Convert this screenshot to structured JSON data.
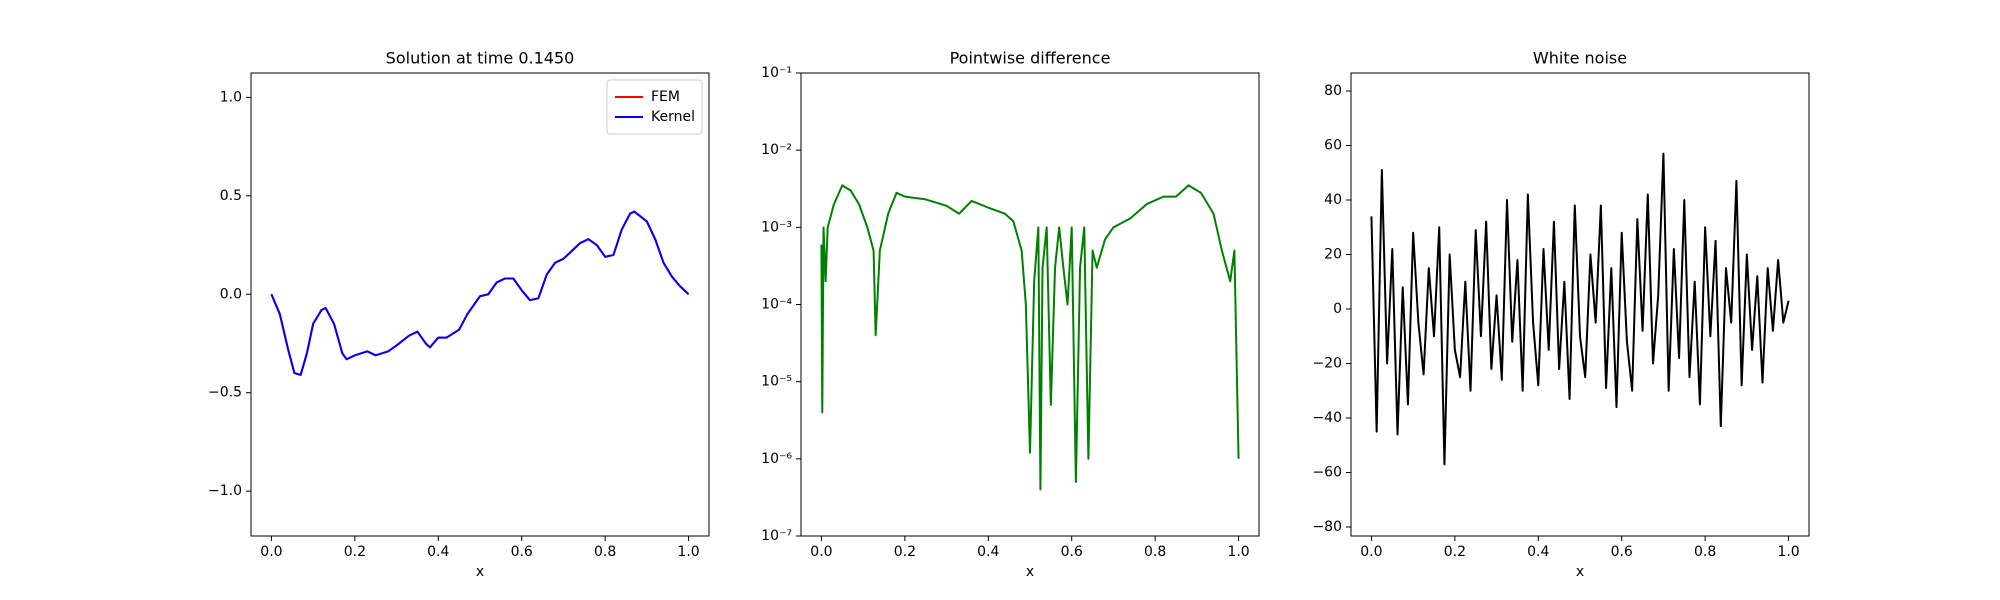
{
  "chart_data": [
    {
      "type": "line",
      "title": "Solution at time 0.1450",
      "xlabel": "x",
      "x": [
        0,
        0.02,
        0.04,
        0.055,
        0.07,
        0.085,
        0.1,
        0.12,
        0.13,
        0.15,
        0.17,
        0.18,
        0.2,
        0.23,
        0.25,
        0.28,
        0.3,
        0.33,
        0.35,
        0.37,
        0.38,
        0.4,
        0.42,
        0.45,
        0.47,
        0.5,
        0.52,
        0.54,
        0.56,
        0.58,
        0.6,
        0.62,
        0.64,
        0.66,
        0.68,
        0.7,
        0.72,
        0.74,
        0.76,
        0.78,
        0.8,
        0.82,
        0.84,
        0.86,
        0.87,
        0.9,
        0.92,
        0.94,
        0.96,
        0.98,
        1.0
      ],
      "series": [
        {
          "name": "FEM",
          "color": "#ff0000",
          "values": [
            0,
            -0.1,
            -0.28,
            -0.4,
            -0.41,
            -0.3,
            -0.15,
            -0.08,
            -0.07,
            -0.15,
            -0.3,
            -0.33,
            -0.31,
            -0.29,
            -0.31,
            -0.29,
            -0.26,
            -0.21,
            -0.19,
            -0.25,
            -0.27,
            -0.22,
            -0.22,
            -0.18,
            -0.1,
            -0.01,
            0.0,
            0.06,
            0.08,
            0.08,
            0.02,
            -0.03,
            -0.02,
            0.1,
            0.16,
            0.18,
            0.22,
            0.26,
            0.28,
            0.25,
            0.19,
            0.2,
            0.33,
            0.41,
            0.42,
            0.37,
            0.28,
            0.16,
            0.09,
            0.04,
            0.0
          ]
        },
        {
          "name": "Kernel",
          "color": "#0000ff",
          "values": [
            0,
            -0.1,
            -0.28,
            -0.4,
            -0.41,
            -0.3,
            -0.15,
            -0.08,
            -0.07,
            -0.15,
            -0.3,
            -0.33,
            -0.31,
            -0.29,
            -0.31,
            -0.29,
            -0.26,
            -0.21,
            -0.19,
            -0.25,
            -0.27,
            -0.22,
            -0.22,
            -0.18,
            -0.1,
            -0.01,
            0.0,
            0.06,
            0.08,
            0.08,
            0.02,
            -0.03,
            -0.02,
            0.1,
            0.16,
            0.18,
            0.22,
            0.26,
            0.28,
            0.25,
            0.19,
            0.2,
            0.33,
            0.41,
            0.42,
            0.37,
            0.28,
            0.16,
            0.09,
            0.04,
            0.0
          ]
        }
      ],
      "xlim": [
        -0.049,
        1.049
      ],
      "ylim": [
        -1.228,
        1.124
      ],
      "xticks": [
        {
          "value": 0,
          "label": "0.0"
        },
        0.2,
        0.4,
        0.6,
        0.8,
        {
          "value": 1,
          "label": "1.0"
        }
      ],
      "yticks": [
        {
          "value": -1,
          "label": "−1.0"
        },
        {
          "value": -0.5,
          "label": "−0.5"
        },
        {
          "value": 0,
          "label": "0.0"
        },
        0.5,
        {
          "value": 1,
          "label": "1.0"
        }
      ],
      "legend": "upper right"
    },
    {
      "type": "line",
      "title": "Pointwise difference",
      "xlabel": "x",
      "yscale": "log",
      "x": [
        0,
        0.002,
        0.005,
        0.01,
        0.015,
        0.03,
        0.05,
        0.07,
        0.09,
        0.11,
        0.125,
        0.13,
        0.14,
        0.16,
        0.18,
        0.2,
        0.25,
        0.3,
        0.33,
        0.36,
        0.4,
        0.44,
        0.46,
        0.48,
        0.49,
        0.5,
        0.51,
        0.52,
        0.525,
        0.53,
        0.54,
        0.55,
        0.56,
        0.57,
        0.58,
        0.59,
        0.6,
        0.61,
        0.62,
        0.63,
        0.64,
        0.65,
        0.66,
        0.68,
        0.7,
        0.74,
        0.78,
        0.82,
        0.85,
        0.88,
        0.91,
        0.94,
        0.96,
        0.98,
        0.99,
        1.0
      ],
      "series": [
        {
          "color": "#008000",
          "values": [
            0.0006,
            4e-06,
            0.001,
            0.0002,
            0.001,
            0.002,
            0.0035,
            0.003,
            0.002,
            0.001,
            0.0005,
            4e-05,
            0.0005,
            0.0015,
            0.0028,
            0.0025,
            0.0023,
            0.0019,
            0.0015,
            0.0022,
            0.0018,
            0.0015,
            0.0012,
            0.0005,
            0.0001,
            1.2e-06,
            0.0002,
            0.001,
            4e-07,
            0.0003,
            0.001,
            5e-06,
            0.0003,
            0.001,
            0.0003,
            0.0001,
            0.001,
            5e-07,
            0.0003,
            0.001,
            1e-06,
            0.0005,
            0.0003,
            0.0007,
            0.001,
            0.0013,
            0.002,
            0.0025,
            0.0025,
            0.0035,
            0.0028,
            0.0015,
            0.0005,
            0.0002,
            0.0005,
            1e-06
          ]
        }
      ],
      "xlim": [
        -0.049,
        1.049
      ],
      "ylim": [
        1e-07,
        0.1
      ],
      "xticks": [
        {
          "value": 0,
          "label": "0.0"
        },
        0.2,
        0.4,
        0.6,
        0.8,
        {
          "value": 1,
          "label": "1.0"
        }
      ],
      "yticks": [
        {
          "value": 1e-07,
          "label": "10⁻⁷"
        },
        {
          "value": 1e-06,
          "label": "10⁻⁶"
        },
        {
          "value": 1e-05,
          "label": "10⁻⁵"
        },
        {
          "value": 0.0001,
          "label": "10⁻⁴"
        },
        {
          "value": 0.001,
          "label": "10⁻³"
        },
        {
          "value": 0.01,
          "label": "10⁻²"
        },
        {
          "value": 0.1,
          "label": "10⁻¹"
        }
      ]
    },
    {
      "type": "line",
      "title": "White noise",
      "xlabel": "x",
      "x": [
        0,
        0.0125,
        0.025,
        0.0375,
        0.05,
        0.0625,
        0.075,
        0.0875,
        0.1,
        0.1125,
        0.125,
        0.1375,
        0.15,
        0.1625,
        0.175,
        0.1875,
        0.2,
        0.2125,
        0.225,
        0.2375,
        0.25,
        0.2625,
        0.275,
        0.2875,
        0.3,
        0.3125,
        0.325,
        0.3375,
        0.35,
        0.3625,
        0.375,
        0.3875,
        0.4,
        0.4125,
        0.425,
        0.4375,
        0.45,
        0.4625,
        0.475,
        0.4875,
        0.5,
        0.5125,
        0.525,
        0.5375,
        0.55,
        0.5625,
        0.575,
        0.5875,
        0.6,
        0.6125,
        0.625,
        0.6375,
        0.65,
        0.6625,
        0.675,
        0.6875,
        0.7,
        0.7125,
        0.725,
        0.7375,
        0.75,
        0.7625,
        0.775,
        0.7875,
        0.8,
        0.8125,
        0.825,
        0.8375,
        0.85,
        0.8625,
        0.875,
        0.8875,
        0.9,
        0.9125,
        0.925,
        0.9375,
        0.95,
        0.9625,
        0.975,
        0.9875,
        1.0
      ],
      "series": [
        {
          "color": "#000000",
          "values": [
            34,
            -45,
            51,
            -20,
            22,
            -46,
            8,
            -35,
            28,
            -5,
            -24,
            15,
            -10,
            30,
            -57,
            20,
            -15,
            -25,
            10,
            -30,
            29,
            -10,
            32,
            -22,
            5,
            -26,
            40,
            -12,
            18,
            -30,
            42,
            -5,
            -28,
            22,
            -15,
            32,
            -22,
            10,
            -33,
            38,
            -10,
            -25,
            20,
            -5,
            38,
            -29,
            15,
            -36,
            28,
            -12,
            -30,
            33,
            -8,
            42,
            -20,
            5,
            57,
            -30,
            22,
            -18,
            40,
            -25,
            10,
            -35,
            30,
            -10,
            25,
            -43,
            15,
            -5,
            47,
            -28,
            20,
            -15,
            12,
            -27,
            15,
            -8,
            18,
            -5,
            3
          ]
        }
      ],
      "xlim": [
        -0.049,
        1.049
      ],
      "ylim": [
        -83.3,
        86.6
      ],
      "xticks": [
        {
          "value": 0,
          "label": "0.0"
        },
        0.2,
        0.4,
        0.6,
        0.8,
        {
          "value": 1,
          "label": "1.0"
        }
      ],
      "yticks": [
        {
          "value": -80,
          "label": "−80"
        },
        {
          "value": -60,
          "label": "−60"
        },
        {
          "value": -40,
          "label": "−40"
        },
        {
          "value": -20,
          "label": "−20"
        },
        0,
        20,
        40,
        60,
        80
      ]
    }
  ]
}
